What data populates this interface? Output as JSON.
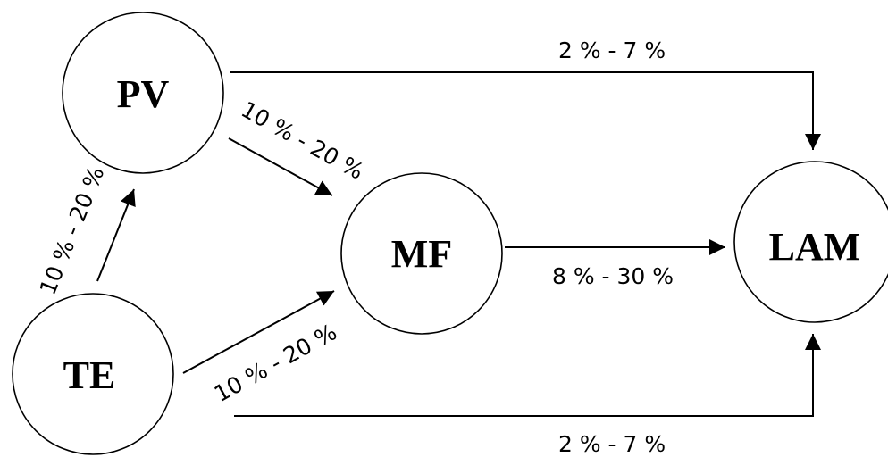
{
  "nodes": {
    "pv": {
      "label": "PV"
    },
    "te": {
      "label": "TE"
    },
    "mf": {
      "label": "MF"
    },
    "lam": {
      "label": "LAM"
    }
  },
  "edges": {
    "pv_lam": {
      "from": "PV",
      "to": "LAM",
      "label": "2 % - 7 %"
    },
    "pv_mf": {
      "from": "PV",
      "to": "MF",
      "label": "10 % - 20 %"
    },
    "te_pv": {
      "from": "TE",
      "to": "PV",
      "label": "10 % - 20 %"
    },
    "te_mf": {
      "from": "TE",
      "to": "MF",
      "label": "10 % - 20 %"
    },
    "mf_lam": {
      "from": "MF",
      "to": "LAM",
      "label": "8 % - 30 %"
    },
    "te_lam": {
      "from": "TE",
      "to": "LAM",
      "label": "2 % - 7 %"
    }
  },
  "colors": {
    "stroke": "#000000",
    "background": "#ffffff"
  }
}
